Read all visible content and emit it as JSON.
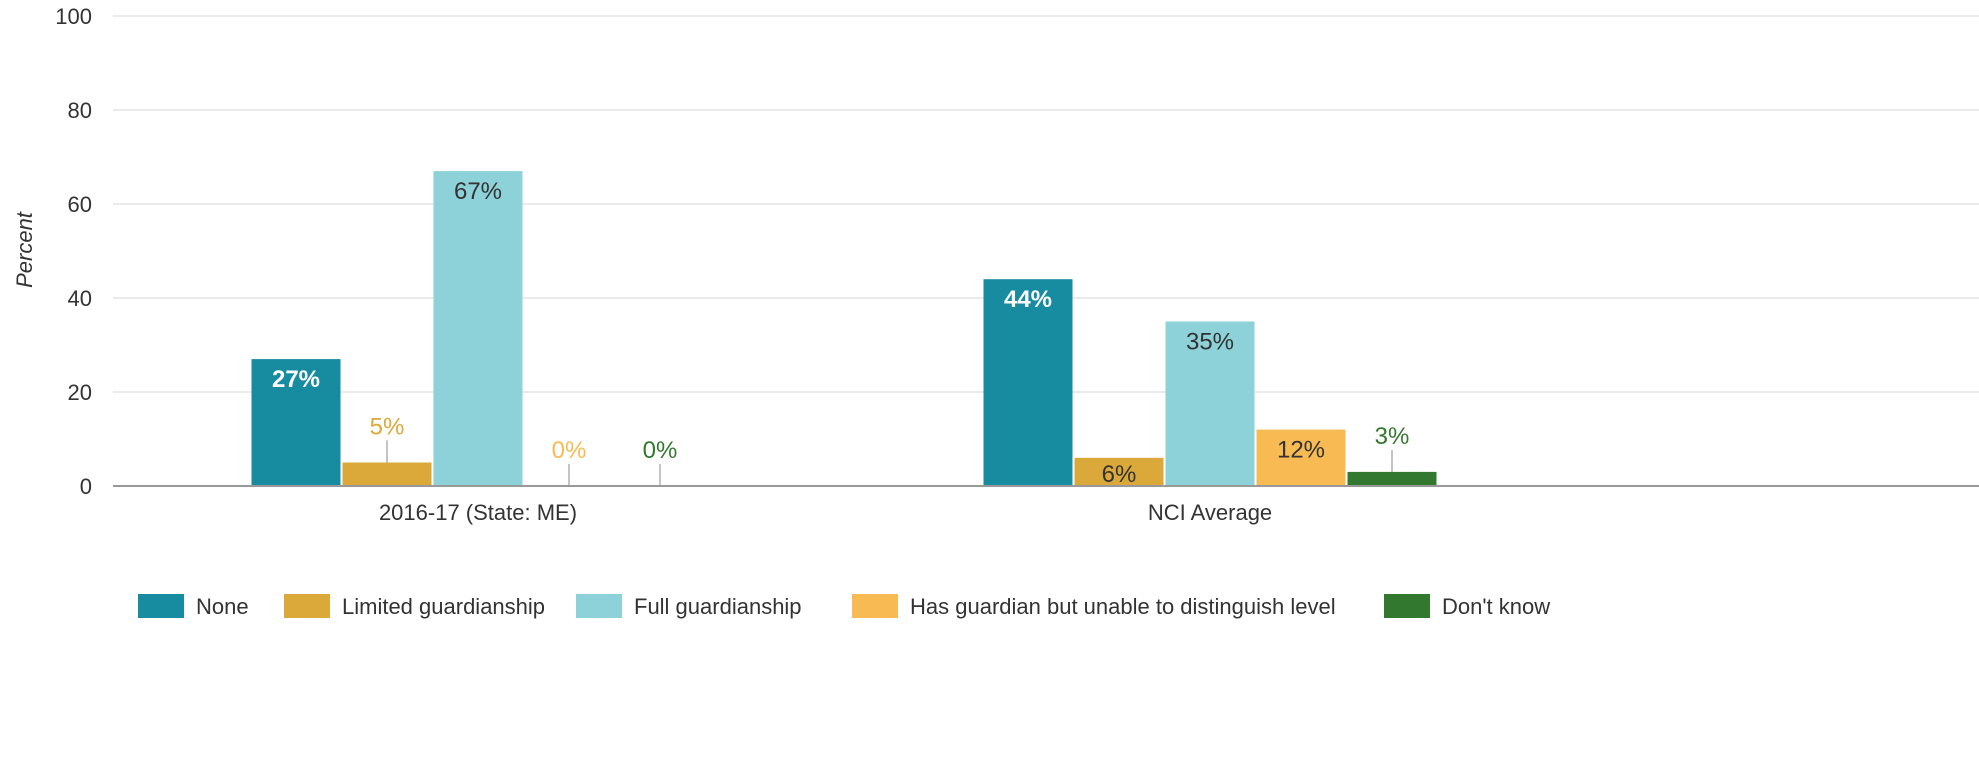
{
  "chart_data": {
    "type": "bar",
    "ylabel": "Percent",
    "ylim": [
      0,
      100
    ],
    "yticks": [
      "0",
      "20",
      "40",
      "60",
      "80",
      "100"
    ],
    "grid": true,
    "legend_position": "bottom",
    "categories": [
      "2016-17 (State: ME)",
      "NCI Average"
    ],
    "series": [
      {
        "name": "None",
        "color": "#178ca0",
        "values": [
          27,
          44
        ],
        "labels": [
          "27%",
          "44%"
        ]
      },
      {
        "name": "Limited guardianship",
        "color": "#dba83a",
        "values": [
          5,
          6
        ],
        "labels": [
          "5%",
          "6%"
        ]
      },
      {
        "name": "Full guardianship",
        "color": "#8dd2d9",
        "values": [
          67,
          35
        ],
        "labels": [
          "67%",
          "35%"
        ]
      },
      {
        "name": "Has guardian but unable to distinguish level",
        "color": "#f8bb53",
        "values": [
          0,
          12
        ],
        "labels": [
          "0%",
          "12%"
        ]
      },
      {
        "name": "Don't know",
        "color": "#33782f",
        "values": [
          0,
          3
        ],
        "labels": [
          "0%",
          "3%"
        ]
      }
    ]
  }
}
